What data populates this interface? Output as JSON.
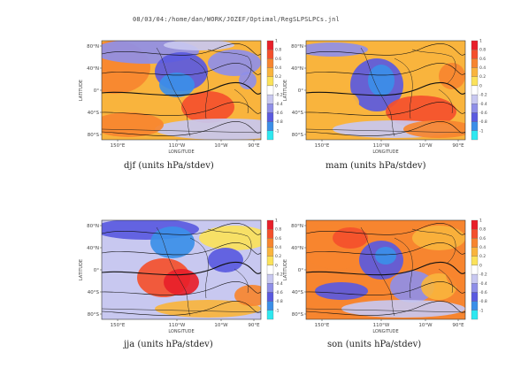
{
  "header": {
    "path": "08/03/04:/home/dan/WORK/JOZEF/Optimal/RegSLPSLPCs.jnl"
  },
  "map_common": {
    "lat_ticks": [
      "80°N",
      "40°N",
      "0°",
      "40°S",
      "80°S"
    ],
    "lon_ticks": [
      "150°E",
      "110°W",
      "10°W",
      "90°E"
    ],
    "ylabel": "LATITUDE",
    "xlabel": "LONGITUDE",
    "colorbar_ticks": [
      "1",
      "0.8",
      "0.6",
      "0.4",
      "0.2",
      "0",
      "-0.2",
      "-0.4",
      "-0.6",
      "-0.8",
      "-1"
    ],
    "colorbar_colors": [
      "#e8202a",
      "#f4502c",
      "#f7852f",
      "#f9b43d",
      "#fbe25a",
      "#ffffff",
      "#c8c8f0",
      "#8f8fe8",
      "#5a5ae0",
      "#3b8fe8",
      "#2ee8f0"
    ]
  },
  "panels": [
    {
      "key": "djf",
      "caption": "djf (units hPa/stdev)"
    },
    {
      "key": "mam",
      "caption": "mam (units hPa/stdev)"
    },
    {
      "key": "jja",
      "caption": "jja (units hPa/stdev)"
    },
    {
      "key": "son",
      "caption": "son (units hPa/stdev)"
    }
  ]
}
